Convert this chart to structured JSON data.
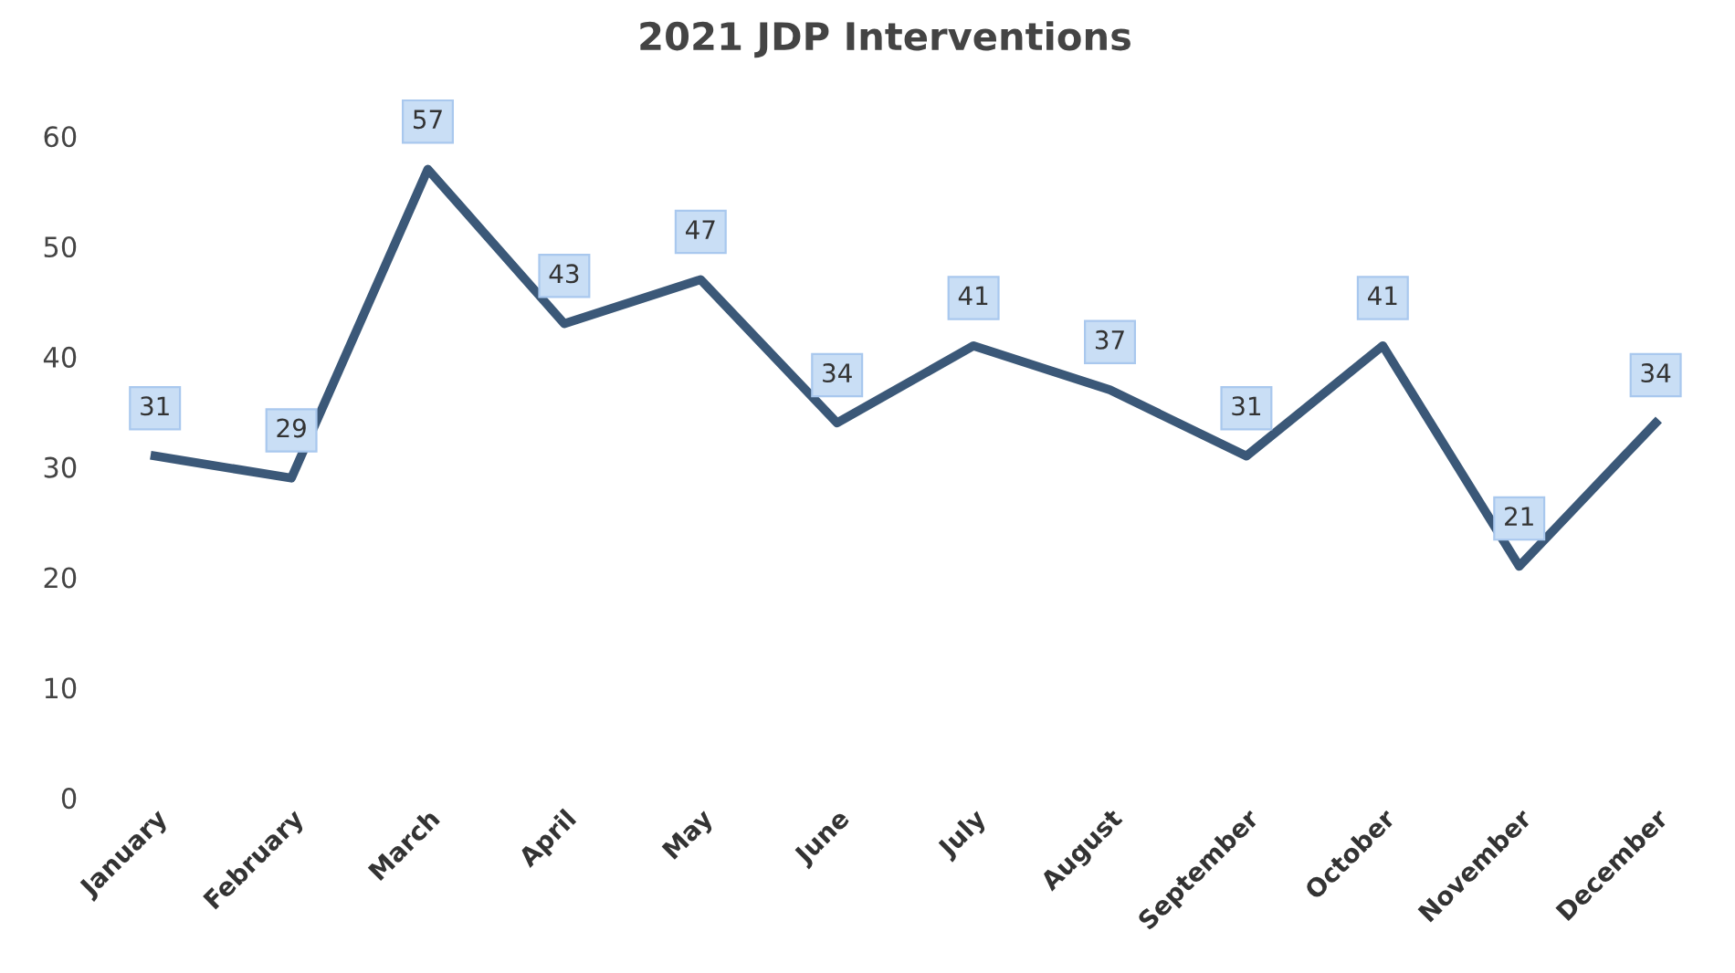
{
  "chart_data": {
    "type": "line",
    "title": "2021 JDP Interventions",
    "categories": [
      "January",
      "February",
      "March",
      "April",
      "May",
      "June",
      "July",
      "August",
      "September",
      "October",
      "November",
      "December"
    ],
    "series": [
      {
        "color": "#3b5878",
        "values": [
          31,
          29,
          57,
          43,
          47,
          34,
          41,
          37,
          31,
          41,
          21,
          34
        ]
      }
    ],
    "ylim": [
      0,
      60
    ],
    "yticks": [
      0,
      10,
      20,
      30,
      40,
      50,
      60
    ],
    "grid": false,
    "marker": "none",
    "line_style": "solid",
    "data_labels": true
  }
}
